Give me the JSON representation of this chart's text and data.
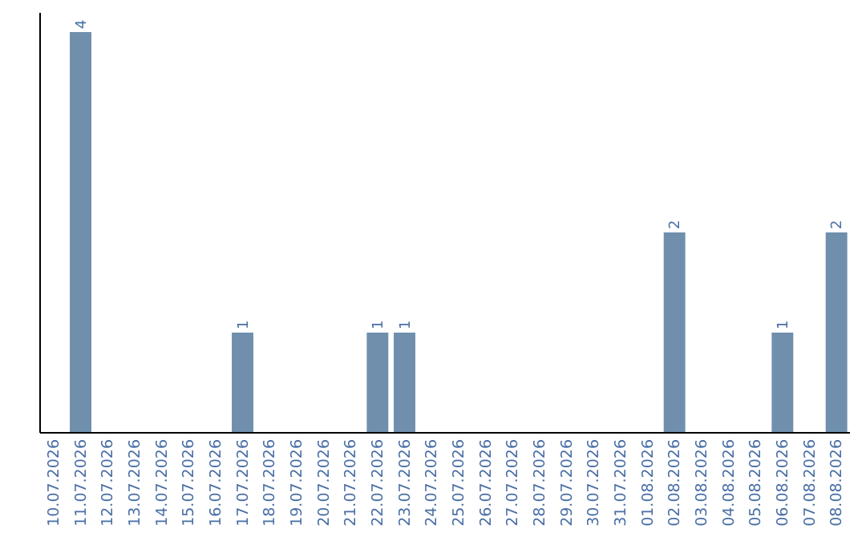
{
  "chart_data": {
    "type": "bar",
    "categories": [
      "10.07.2026",
      "11.07.2026",
      "12.07.2026",
      "13.07.2026",
      "14.07.2026",
      "15.07.2026",
      "16.07.2026",
      "17.07.2026",
      "18.07.2026",
      "19.07.2026",
      "20.07.2026",
      "21.07.2026",
      "22.07.2026",
      "23.07.2026",
      "24.07.2026",
      "25.07.2026",
      "26.07.2026",
      "27.07.2026",
      "28.07.2026",
      "29.07.2026",
      "30.07.2026",
      "31.07.2026",
      "01.08.2026",
      "02.08.2026",
      "03.08.2026",
      "04.08.2026",
      "05.08.2026",
      "06.08.2026",
      "07.08.2026",
      "08.08.2026"
    ],
    "values": [
      0,
      4,
      0,
      0,
      0,
      0,
      0,
      1,
      0,
      0,
      0,
      0,
      1,
      1,
      0,
      0,
      0,
      0,
      0,
      0,
      0,
      0,
      0,
      2,
      0,
      0,
      0,
      1,
      0,
      2
    ],
    "value_labels": [
      null,
      "4",
      null,
      null,
      null,
      null,
      null,
      "1",
      null,
      null,
      null,
      null,
      "1",
      "1",
      null,
      null,
      null,
      null,
      null,
      null,
      null,
      null,
      null,
      "2",
      null,
      null,
      null,
      "1",
      null,
      "2"
    ],
    "color": "#6f8fad",
    "tick_labels": "x"
  }
}
